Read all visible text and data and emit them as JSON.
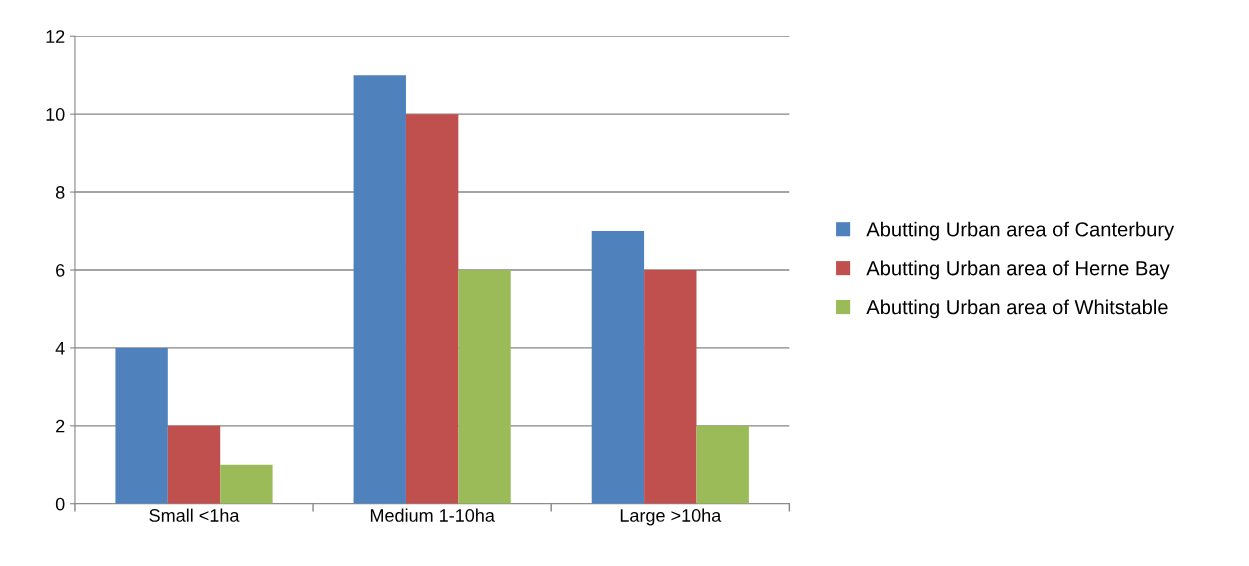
{
  "chart_data": {
    "type": "bar",
    "categories": [
      "Small <1ha",
      "Medium 1-10ha",
      "Large >10ha"
    ],
    "series": [
      {
        "name": "Abutting Urban area of Canterbury",
        "color": "#4f81bd",
        "values": [
          4,
          11,
          7
        ]
      },
      {
        "name": "Abutting Urban area of Herne Bay",
        "color": "#c0504d",
        "values": [
          2,
          10,
          6
        ]
      },
      {
        "name": "Abutting Urban area of Whitstable",
        "color": "#9bbb59",
        "values": [
          1,
          6,
          2
        ]
      }
    ],
    "ylim": [
      0,
      12
    ],
    "yticks": [
      0,
      2,
      4,
      6,
      8,
      10,
      12
    ],
    "grid": "y",
    "legend": "right"
  }
}
